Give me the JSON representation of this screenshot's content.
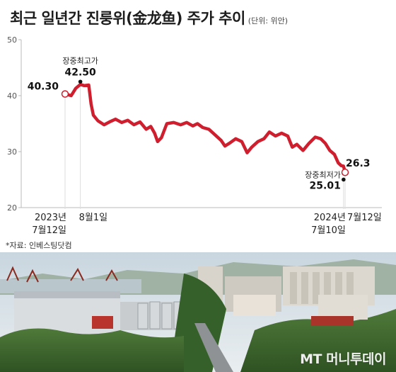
{
  "title": "최근 일년간 진룽위(金龙鱼) 주가 추이",
  "unit": "(단위: 위안)",
  "source": "*자료: 인베스팅닷컴",
  "watermark": "MT 머니투데이",
  "photo_icon": "industrial-factory-photo",
  "colors": {
    "line": "#cf1f2e",
    "axis": "#bbbbbb",
    "grid": "#dddddd",
    "marker_fill": "#ffffff",
    "marker_stroke": "#cf1f2e"
  },
  "chart_data": {
    "type": "line",
    "ylim": [
      20,
      50
    ],
    "yticks": [
      "50",
      "40",
      "30",
      "20"
    ],
    "grid": false,
    "x_axis_labels": [
      {
        "date": "2023-07-12",
        "line1": "2023년",
        "line2": "7월12일"
      },
      {
        "date": "2023-08-01",
        "line1": "8월1일",
        "line2": ""
      },
      {
        "date": "2024-07-10",
        "line1": "2024년",
        "line2": "7월10일"
      },
      {
        "date": "2024-07-12",
        "line1": "7월12일",
        "line2": ""
      }
    ],
    "annotations": [
      {
        "date": "2023-07-12",
        "label": "",
        "value": "40.30",
        "y": 40.3
      },
      {
        "date": "2023-08-01",
        "label": "장중최고가",
        "value": "42.50",
        "y": 42.5
      },
      {
        "date": "2024-07-10",
        "label": "장중최저가",
        "value": "25.01",
        "y": 25.01
      },
      {
        "date": "2024-07-12",
        "label": "",
        "value": "26.3",
        "y": 26.3
      }
    ],
    "series": [
      {
        "values": [
          [
            "2023-07-12",
            40.3
          ],
          [
            "2023-07-20",
            40.0
          ],
          [
            "2023-07-26",
            41.3
          ],
          [
            "2023-08-01",
            42.0
          ],
          [
            "2023-08-06",
            41.8
          ],
          [
            "2023-08-12",
            41.9
          ],
          [
            "2023-08-15",
            38.5
          ],
          [
            "2023-08-18",
            36.5
          ],
          [
            "2023-08-24",
            35.5
          ],
          [
            "2023-09-01",
            34.8
          ],
          [
            "2023-09-08",
            35.3
          ],
          [
            "2023-09-16",
            35.8
          ],
          [
            "2023-09-24",
            35.2
          ],
          [
            "2023-10-02",
            35.6
          ],
          [
            "2023-10-10",
            34.8
          ],
          [
            "2023-10-18",
            35.3
          ],
          [
            "2023-10-26",
            34.0
          ],
          [
            "2023-11-01",
            34.5
          ],
          [
            "2023-11-06",
            33.3
          ],
          [
            "2023-11-10",
            31.8
          ],
          [
            "2023-11-15",
            32.5
          ],
          [
            "2023-11-22",
            35.0
          ],
          [
            "2023-12-01",
            35.2
          ],
          [
            "2023-12-10",
            34.8
          ],
          [
            "2023-12-18",
            35.2
          ],
          [
            "2023-12-26",
            34.6
          ],
          [
            "2024-01-01",
            35.0
          ],
          [
            "2024-01-08",
            34.3
          ],
          [
            "2024-01-16",
            34.0
          ],
          [
            "2024-01-24",
            33.0
          ],
          [
            "2024-02-01",
            32.0
          ],
          [
            "2024-02-06",
            31.0
          ],
          [
            "2024-02-12",
            31.5
          ],
          [
            "2024-02-20",
            32.3
          ],
          [
            "2024-02-28",
            31.8
          ],
          [
            "2024-03-06",
            29.8
          ],
          [
            "2024-03-12",
            30.8
          ],
          [
            "2024-03-20",
            31.8
          ],
          [
            "2024-03-28",
            32.3
          ],
          [
            "2024-04-04",
            33.5
          ],
          [
            "2024-04-12",
            32.8
          ],
          [
            "2024-04-20",
            33.3
          ],
          [
            "2024-04-28",
            32.8
          ],
          [
            "2024-05-04",
            30.8
          ],
          [
            "2024-05-10",
            31.3
          ],
          [
            "2024-05-18",
            30.2
          ],
          [
            "2024-05-26",
            31.5
          ],
          [
            "2024-06-03",
            32.6
          ],
          [
            "2024-06-10",
            32.3
          ],
          [
            "2024-06-16",
            31.5
          ],
          [
            "2024-06-22",
            30.2
          ],
          [
            "2024-06-28",
            29.5
          ],
          [
            "2024-07-03",
            28.0
          ],
          [
            "2024-07-07",
            27.5
          ],
          [
            "2024-07-10",
            27.4
          ],
          [
            "2024-07-12",
            26.3
          ]
        ]
      }
    ]
  }
}
